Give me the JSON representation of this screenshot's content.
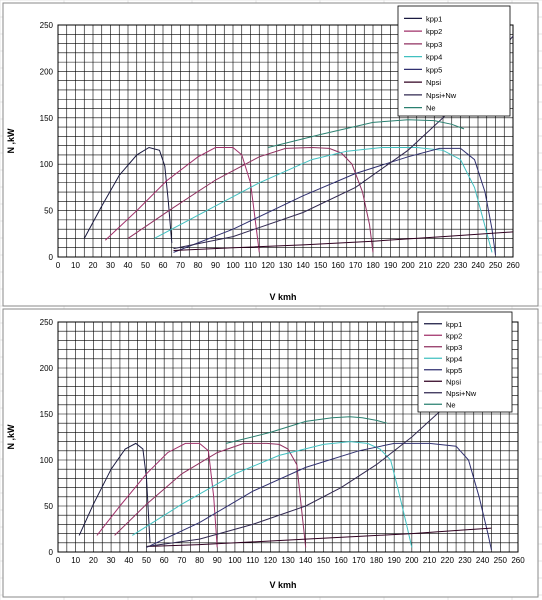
{
  "chart_data": [
    {
      "type": "line",
      "xlabel": "V kmh",
      "ylabel": "N ,kW",
      "xlim": [
        0,
        260
      ],
      "ylim": [
        0,
        250
      ],
      "xticks": [
        0,
        10,
        20,
        30,
        40,
        50,
        60,
        70,
        80,
        90,
        100,
        110,
        120,
        130,
        140,
        150,
        160,
        170,
        180,
        190,
        200,
        210,
        220,
        230,
        240,
        250,
        260
      ],
      "yticks": [
        0,
        50,
        100,
        150,
        200,
        250
      ],
      "grid": true,
      "legend_position": "top-right",
      "series": [
        {
          "name": "kpp1",
          "color": "#1a1a40",
          "x": [
            15,
            25,
            35,
            45,
            52,
            58,
            61,
            63,
            65
          ],
          "y": [
            20,
            55,
            88,
            110,
            118,
            115,
            98,
            60,
            15
          ]
        },
        {
          "name": "kpp2",
          "color": "#a0306a",
          "x": [
            27,
            45,
            62,
            80,
            90,
            100,
            105,
            110,
            113,
            115
          ],
          "y": [
            18,
            50,
            82,
            108,
            118,
            118,
            110,
            80,
            35,
            5
          ]
        },
        {
          "name": "kpp3",
          "color": "#903060",
          "x": [
            40,
            65,
            90,
            115,
            130,
            145,
            155,
            162,
            168,
            174,
            178,
            180
          ],
          "y": [
            20,
            52,
            83,
            108,
            117,
            118,
            117,
            112,
            100,
            70,
            35,
            5
          ]
        },
        {
          "name": "kpp4",
          "color": "#40c0c0",
          "x": [
            55,
            85,
            115,
            145,
            165,
            185,
            205,
            220,
            230,
            238,
            243,
            248
          ],
          "y": [
            20,
            50,
            80,
            105,
            114,
            118,
            118,
            115,
            105,
            75,
            40,
            5
          ]
        },
        {
          "name": "kpp5",
          "color": "#303070",
          "x": [
            66,
            100,
            140,
            170,
            200,
            218,
            230,
            238,
            244,
            248,
            250
          ],
          "y": [
            5,
            30,
            66,
            90,
            108,
            117,
            117,
            105,
            70,
            30,
            2
          ]
        },
        {
          "name": "Npsi",
          "color": "#300020",
          "x": [
            66,
            100,
            140,
            180,
            220,
            260
          ],
          "y": [
            7,
            10,
            13,
            17,
            22,
            27
          ]
        },
        {
          "name": "Npsi+Nw",
          "color": "#302850",
          "x": [
            66,
            100,
            140,
            170,
            200,
            220,
            240,
            260
          ],
          "y": [
            9,
            22,
            48,
            75,
            115,
            150,
            192,
            238
          ]
        },
        {
          "name": "Ne",
          "color": "#2a8070",
          "x": [
            120,
            150,
            180,
            200,
            215,
            225,
            232
          ],
          "y": [
            118,
            132,
            145,
            148,
            147,
            143,
            138
          ]
        }
      ]
    },
    {
      "type": "line",
      "xlabel": "V kmh",
      "ylabel": "N ,kW",
      "xlim": [
        0,
        260
      ],
      "ylim": [
        0,
        250
      ],
      "xticks": [
        0,
        10,
        20,
        30,
        40,
        50,
        60,
        70,
        80,
        90,
        100,
        110,
        120,
        130,
        140,
        150,
        160,
        170,
        180,
        190,
        200,
        210,
        220,
        230,
        240,
        250,
        260
      ],
      "yticks": [
        0,
        50,
        100,
        150,
        200,
        250
      ],
      "grid": true,
      "legend_position": "top-right",
      "series": [
        {
          "name": "kpp1",
          "color": "#1a1a40",
          "x": [
            12,
            20,
            30,
            38,
            44,
            48,
            50,
            52
          ],
          "y": [
            18,
            52,
            90,
            112,
            118,
            112,
            80,
            10
          ]
        },
        {
          "name": "kpp2",
          "color": "#a0306a",
          "x": [
            22,
            35,
            50,
            62,
            72,
            80,
            85,
            88,
            90
          ],
          "y": [
            18,
            50,
            85,
            108,
            118,
            118,
            110,
            60,
            5
          ]
        },
        {
          "name": "kpp3",
          "color": "#903060",
          "x": [
            32,
            50,
            70,
            90,
            105,
            118,
            125,
            130,
            135,
            138,
            140
          ],
          "y": [
            18,
            52,
            85,
            108,
            118,
            118,
            117,
            112,
            95,
            40,
            5
          ]
        },
        {
          "name": "kpp4",
          "color": "#40c0c0",
          "x": [
            42,
            70,
            100,
            125,
            150,
            165,
            175,
            182,
            188,
            192,
            197,
            200
          ],
          "y": [
            18,
            52,
            85,
            105,
            117,
            120,
            118,
            112,
            100,
            70,
            30,
            5
          ]
        },
        {
          "name": "kpp5",
          "color": "#303070",
          "x": [
            50,
            80,
            110,
            140,
            170,
            190,
            210,
            225,
            232,
            238,
            243,
            245
          ],
          "y": [
            5,
            32,
            66,
            92,
            110,
            118,
            118,
            115,
            100,
            60,
            20,
            2
          ]
        },
        {
          "name": "Npsi",
          "color": "#300020",
          "x": [
            50,
            80,
            110,
            140,
            170,
            200,
            230,
            245
          ],
          "y": [
            6,
            8,
            11,
            14,
            17,
            20,
            24,
            26
          ]
        },
        {
          "name": "Npsi+Nw",
          "color": "#302850",
          "x": [
            50,
            80,
            110,
            140,
            160,
            180,
            200,
            220,
            245
          ],
          "y": [
            6,
            14,
            30,
            50,
            70,
            95,
            125,
            160,
            196
          ]
        },
        {
          "name": "Ne",
          "color": "#2a8070",
          "x": [
            95,
            120,
            140,
            155,
            165,
            172,
            180,
            186
          ],
          "y": [
            118,
            130,
            142,
            146,
            147,
            146,
            143,
            140
          ]
        }
      ]
    }
  ]
}
